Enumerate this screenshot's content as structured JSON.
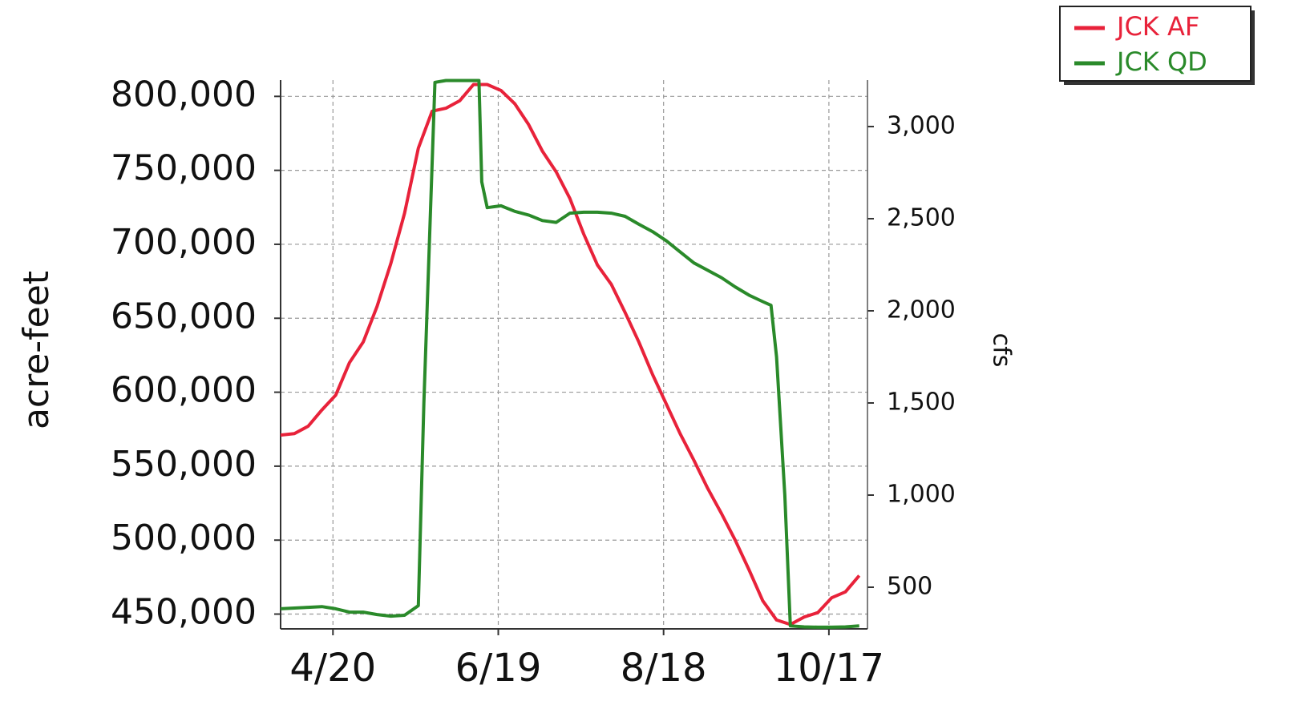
{
  "chart_data": {
    "type": "line",
    "ylabel": "acre-feet",
    "y2label": "cfs",
    "xlim": [
      "4/1",
      "10/31"
    ],
    "xticks": [
      "4/20",
      "6/19",
      "8/18",
      "10/17"
    ],
    "ylim": [
      440000,
      811000
    ],
    "yticks": [
      {
        "value": 450000,
        "label": "450,000"
      },
      {
        "value": 500000,
        "label": "500,000"
      },
      {
        "value": 550000,
        "label": "550,000"
      },
      {
        "value": 600000,
        "label": "600,000"
      },
      {
        "value": 650000,
        "label": "650,000"
      },
      {
        "value": 700000,
        "label": "700,000"
      },
      {
        "value": 750000,
        "label": "750,000"
      },
      {
        "value": 800000,
        "label": "800,000"
      }
    ],
    "y2lim": [
      274,
      3252
    ],
    "y2ticks": [
      500,
      {
        "value": 1000,
        "label": "1,000"
      },
      {
        "value": 1500,
        "label": "1,500"
      },
      {
        "value": 2000,
        "label": "2,000"
      },
      {
        "value": 2500,
        "label": "2,500"
      },
      {
        "value": 3000,
        "label": "3,000"
      }
    ],
    "grid": true,
    "legend": "top-right",
    "series": [
      {
        "name": "JCK AF",
        "color": "#e8223a",
        "x": [
          "4/1",
          "4/6",
          "4/11",
          "4/16",
          "4/21",
          "4/26",
          "5/1",
          "5/6",
          "5/11",
          "5/16",
          "5/21",
          "5/26",
          "5/31",
          "6/5",
          "6/10",
          "6/15",
          "6/20",
          "6/25",
          "6/30",
          "7/5",
          "7/10",
          "7/15",
          "7/20",
          "7/25",
          "7/30",
          "8/4",
          "8/9",
          "8/14",
          "8/19",
          "8/24",
          "8/29",
          "9/3",
          "9/8",
          "9/13",
          "9/18",
          "9/23",
          "9/28",
          "10/3",
          "10/8",
          "10/13",
          "10/18",
          "10/23",
          "10/28"
        ],
        "values": [
          571000,
          572000,
          577000,
          588000,
          598000,
          620000,
          634000,
          658000,
          687000,
          721000,
          765000,
          790000,
          792000,
          797000,
          808000,
          808000,
          804000,
          795000,
          781000,
          763000,
          749000,
          731000,
          707000,
          686000,
          673000,
          654000,
          634000,
          612000,
          592000,
          572000,
          554000,
          535000,
          518000,
          500000,
          480000,
          459000,
          446000,
          443000,
          448000,
          451000,
          461000,
          465000,
          476000
        ]
      },
      {
        "name": "JCK QD",
        "color": "#2a8a2a",
        "axis": "y2",
        "x": [
          "4/1",
          "4/6",
          "4/11",
          "4/16",
          "4/21",
          "4/26",
          "5/1",
          "5/6",
          "5/11",
          "5/16",
          "5/21",
          "5/23",
          "5/26",
          "5/27",
          "5/31",
          "6/5",
          "6/10",
          "6/12",
          "6/13",
          "6/15",
          "6/20",
          "6/25",
          "6/30",
          "7/5",
          "7/10",
          "7/15",
          "7/20",
          "7/25",
          "7/30",
          "8/4",
          "8/9",
          "8/14",
          "8/19",
          "8/24",
          "8/29",
          "9/3",
          "9/8",
          "9/13",
          "9/18",
          "9/23",
          "9/26",
          "9/28",
          "10/1",
          "10/3",
          "10/8",
          "10/13",
          "10/18",
          "10/23",
          "10/28"
        ],
        "values": [
          383,
          387,
          391,
          395,
          383,
          365,
          365,
          352,
          343,
          348,
          400,
          1500,
          2800,
          3240,
          3250,
          3250,
          3250,
          3250,
          2700,
          2560,
          2570,
          2540,
          2520,
          2490,
          2480,
          2530,
          2535,
          2535,
          2530,
          2513,
          2470,
          2430,
          2380,
          2320,
          2260,
          2220,
          2180,
          2130,
          2085,
          2050,
          2030,
          1750,
          1000,
          290,
          285,
          283,
          283,
          285,
          290
        ]
      }
    ]
  }
}
